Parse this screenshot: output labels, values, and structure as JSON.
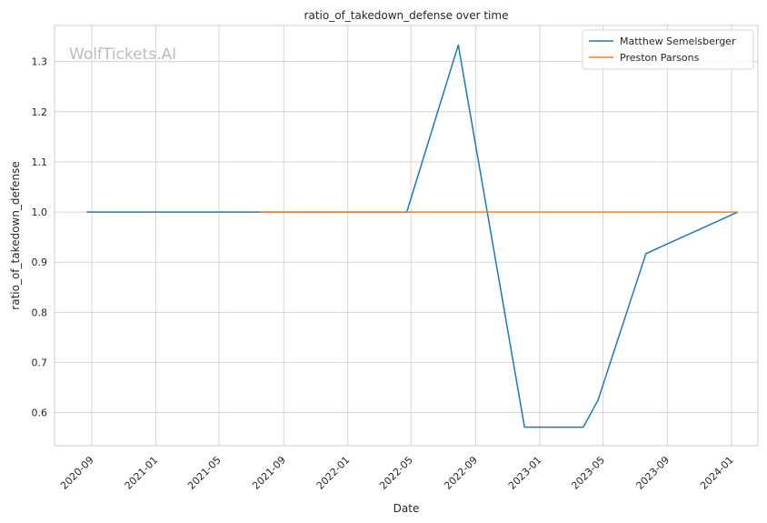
{
  "chart_data": {
    "type": "line",
    "title": "ratio_of_takedown_defense over time",
    "xlabel": "Date",
    "ylabel": "ratio_of_takedown_defense",
    "watermark": "WolfTickets.AI",
    "x_tick_labels": [
      "2020-09",
      "2021-01",
      "2021-05",
      "2021-09",
      "2022-01",
      "2022-05",
      "2022-09",
      "2023-01",
      "2023-05",
      "2023-09",
      "2024-01"
    ],
    "y_tick_labels": [
      "0.6",
      "0.7",
      "0.8",
      "0.9",
      "1.0",
      "1.1",
      "1.2",
      "1.3"
    ],
    "xlim": [
      "2020-06-22",
      "2024-02-20"
    ],
    "ylim": [
      0.534,
      1.372
    ],
    "grid": true,
    "legend_position": "top-right",
    "series": [
      {
        "name": "Matthew Semelsberger",
        "color": "#1f77b4",
        "x": [
          "2020-08-22",
          "2021-07-17",
          "2022-04-23",
          "2022-07-30",
          "2022-12-03",
          "2023-03-25",
          "2023-04-22",
          "2023-07-22",
          "2024-01-13"
        ],
        "y": [
          1.0,
          1.0,
          1.0,
          1.333,
          0.571,
          0.571,
          0.625,
          0.917,
          1.0
        ]
      },
      {
        "name": "Preston Parsons",
        "color": "#ff7f0e",
        "x": [
          "2021-07-17",
          "2022-04-23",
          "2023-01-14",
          "2024-01-13"
        ],
        "y": [
          1.0,
          1.0,
          1.0,
          1.0
        ]
      }
    ]
  }
}
